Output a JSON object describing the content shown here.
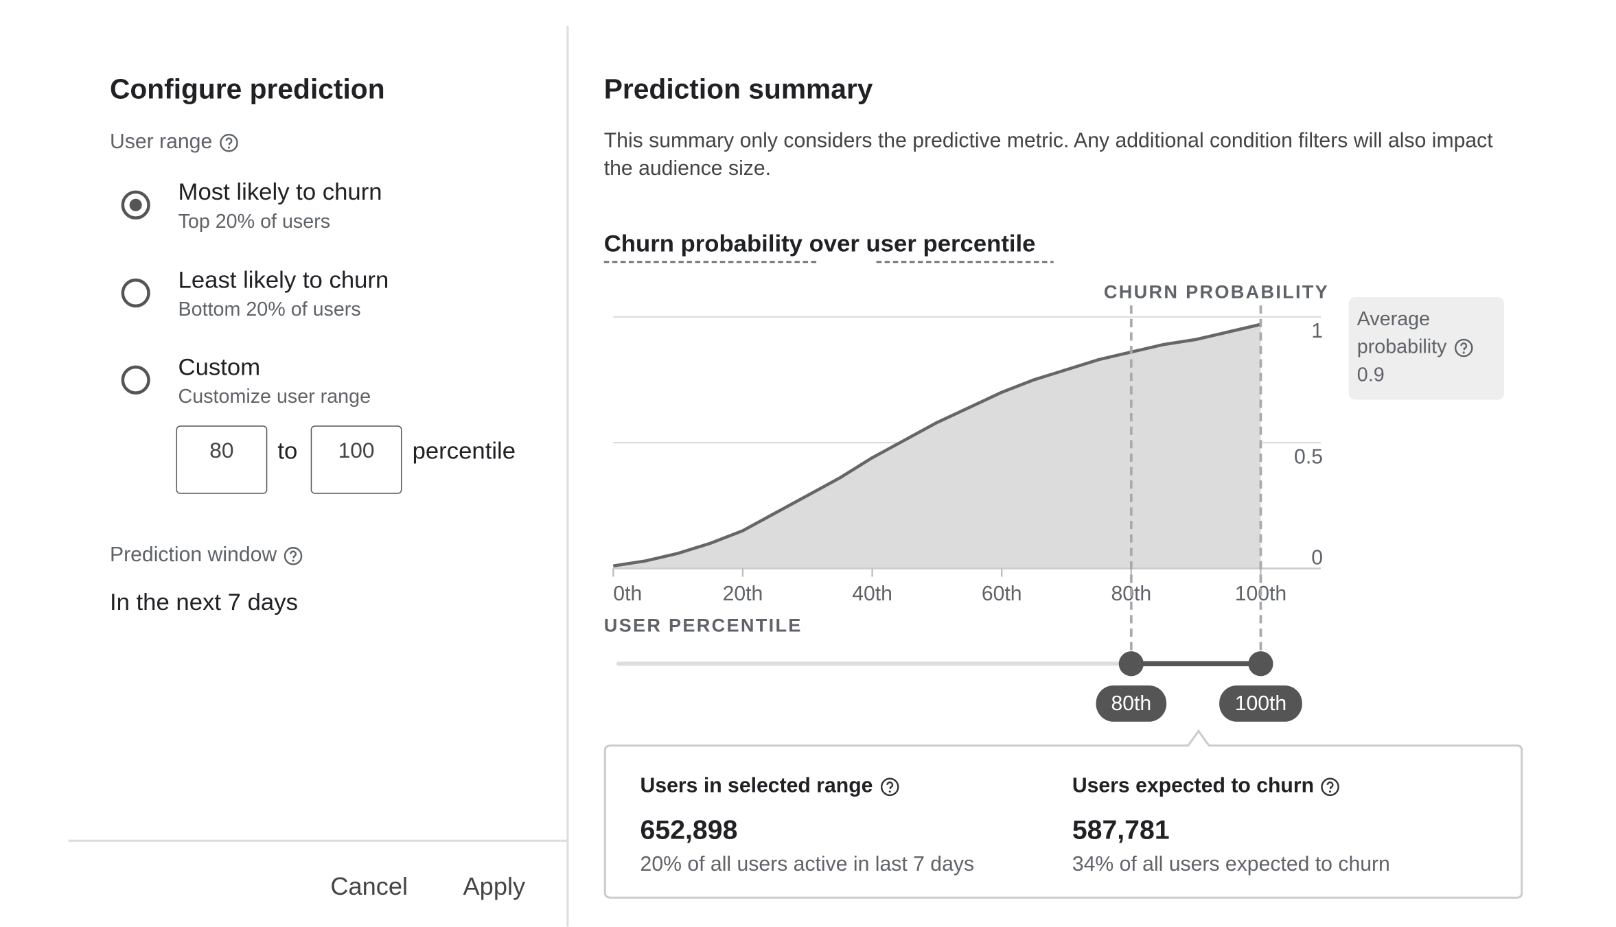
{
  "configure": {
    "title": "Configure prediction",
    "user_range_label": "User range",
    "options": [
      {
        "label": "Most likely to churn",
        "description": "Top 20% of users",
        "selected": true
      },
      {
        "label": "Least likely to churn",
        "description": "Bottom 20% of users",
        "selected": false
      },
      {
        "label": "Custom",
        "description": "Customize user range",
        "selected": false
      }
    ],
    "custom_range": {
      "from": 80,
      "to_label": "to",
      "to": 100,
      "unit": "percentile"
    },
    "prediction_window_label": "Prediction window",
    "prediction_window": "In the next 7 days",
    "buttons": [
      "Cancel",
      "Apply"
    ]
  },
  "summary": {
    "title": "Prediction summary",
    "description": "This summary only considers the predictive metric. Any additional condition filters will also impact the audience size.",
    "stats": [
      {
        "label": "Users in selected range",
        "value": "652,898",
        "note": "20% of all users active in last 7 days"
      },
      {
        "label": "Users expected to churn",
        "value": "587,781",
        "note": "34% of all users expected to churn"
      }
    ]
  },
  "chart_data": {
    "type": "area",
    "title": "Churn probability over user percentile",
    "y_axis_label": "CHURN PROBABILITY",
    "x_axis_label": "USER PERCENTILE",
    "x": [
      0,
      5,
      10,
      15,
      20,
      25,
      30,
      35,
      40,
      45,
      50,
      55,
      60,
      65,
      70,
      75,
      80,
      85,
      90,
      95,
      100
    ],
    "values": [
      0.01,
      0.03,
      0.06,
      0.1,
      0.15,
      0.22,
      0.29,
      0.36,
      0.44,
      0.51,
      0.58,
      0.64,
      0.7,
      0.75,
      0.79,
      0.83,
      0.86,
      0.89,
      0.91,
      0.94,
      0.97
    ],
    "xlim": [
      0,
      100
    ],
    "ylim": [
      0,
      1
    ],
    "xticks": [
      {
        "value": 0,
        "label": "0th"
      },
      {
        "value": 20,
        "label": "20th"
      },
      {
        "value": 40,
        "label": "40th"
      },
      {
        "value": 60,
        "label": "60th"
      },
      {
        "value": 80,
        "label": "80th"
      },
      {
        "value": 100,
        "label": "100th"
      }
    ],
    "yticks": [
      0,
      0.5,
      1
    ],
    "grid": true,
    "color": "#dcdcdc",
    "line_color": "#666666",
    "selection": [
      {
        "value": 80,
        "label": "80th"
      },
      {
        "value": 100,
        "label": "100th"
      }
    ],
    "average": {
      "label": "Average probability",
      "value": 0.9
    }
  }
}
